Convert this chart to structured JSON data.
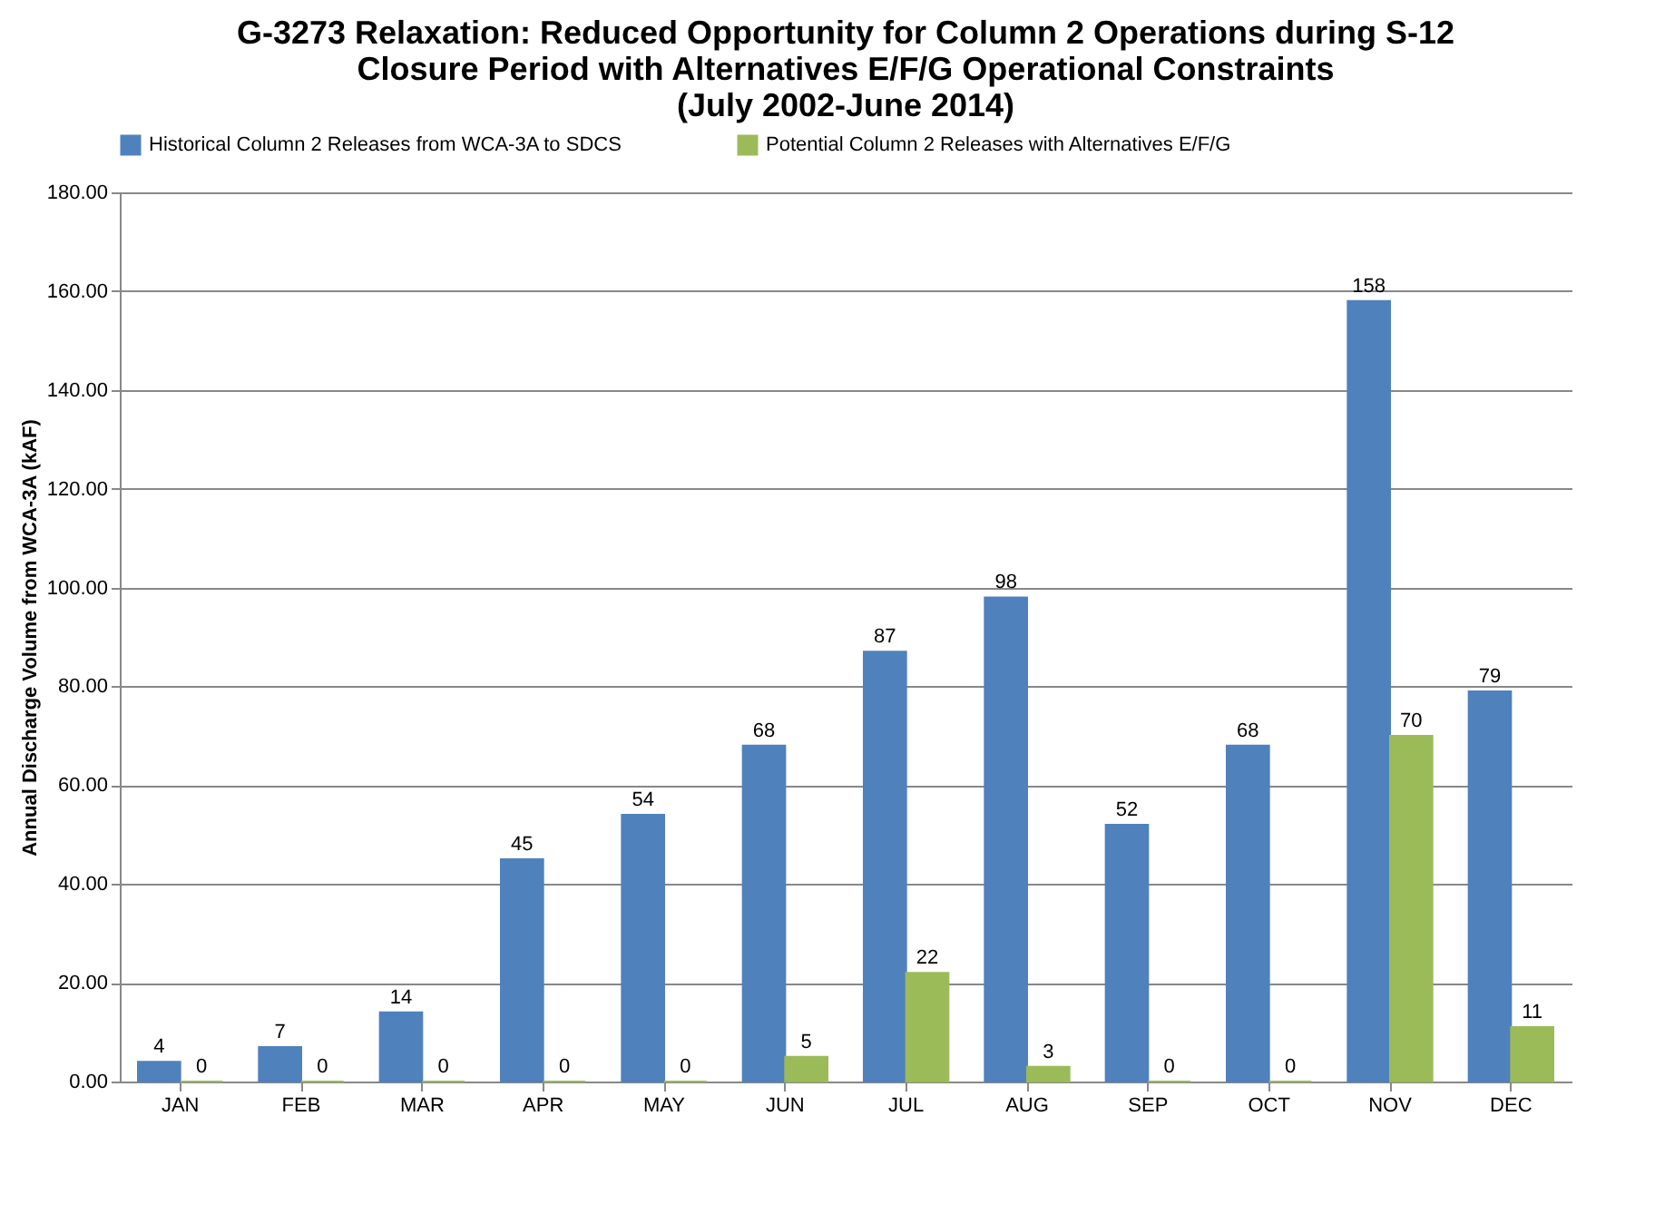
{
  "chart_data": {
    "type": "bar",
    "title": "G-3273 Relaxation: Reduced Opportunity  for Column 2 Operations during S-12\nClosure Period with Alternatives E/F/G Operational  Constraints\n(July 2002-June 2014)",
    "ylabel": "Annual Discharge Volume from WCA-3A (kAF)",
    "categories": [
      "JAN",
      "FEB",
      "MAR",
      "APR",
      "MAY",
      "JUN",
      "JUL",
      "AUG",
      "SEP",
      "OCT",
      "NOV",
      "DEC"
    ],
    "series": [
      {
        "name": "Historical Column 2 Releases from WCA-3A to SDCS",
        "color": "#4f81bd",
        "values": [
          4,
          7,
          14,
          45,
          54,
          68,
          87,
          98,
          52,
          68,
          158,
          79
        ]
      },
      {
        "name": "Potential Column 2 Releases with Alternatives E/F/G",
        "color": "#9bbb59",
        "values": [
          0,
          0,
          0,
          0,
          0,
          5,
          22,
          3,
          0,
          0,
          70,
          11
        ]
      }
    ],
    "ylim": [
      0,
      180
    ],
    "yticks": [
      {
        "value": 0,
        "label": "0.00"
      },
      {
        "value": 20,
        "label": "20.00"
      },
      {
        "value": 40,
        "label": "40.00"
      },
      {
        "value": 60,
        "label": "60.00"
      },
      {
        "value": 80,
        "label": "80.00"
      },
      {
        "value": 100,
        "label": "100.00"
      },
      {
        "value": 120,
        "label": "120.00"
      },
      {
        "value": 140,
        "label": "140.00"
      },
      {
        "value": 160,
        "label": "160.00"
      },
      {
        "value": 180,
        "label": "180.00"
      }
    ],
    "grid": "y",
    "legend": "top",
    "data_labels": true
  }
}
